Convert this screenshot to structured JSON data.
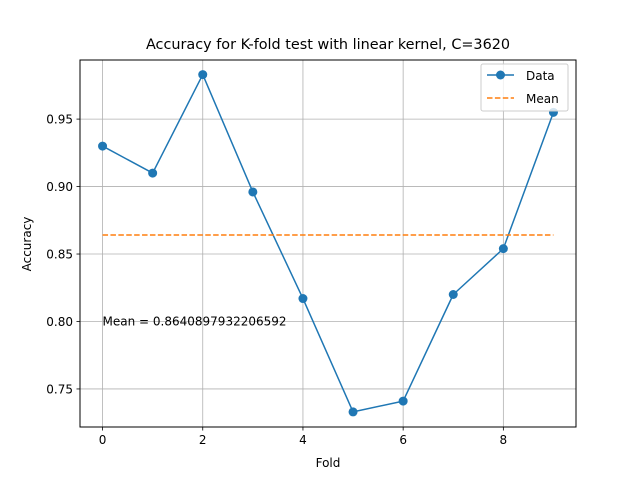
{
  "chart_data": {
    "type": "line",
    "title": "Accuracy for K-fold test with linear kernel, C=3620",
    "xlabel": "Fold",
    "ylabel": "Accuracy",
    "xlim": [
      -0.45,
      9.45
    ],
    "ylim": [
      0.7218,
      0.9938
    ],
    "xticks": [
      0,
      2,
      4,
      6,
      8
    ],
    "yticks": [
      0.75,
      0.8,
      0.85,
      0.9,
      0.95
    ],
    "ytick_labels": [
      "0.75",
      "0.80",
      "0.85",
      "0.90",
      "0.95"
    ],
    "grid": true,
    "legend": {
      "placement": "top-right",
      "entries": [
        "Data",
        "Mean"
      ]
    },
    "series": [
      {
        "name": "Data",
        "style": "line-marker",
        "color": "#1f77b4",
        "x": [
          0,
          1,
          2,
          3,
          4,
          5,
          6,
          7,
          8,
          9
        ],
        "values": [
          0.93,
          0.91,
          0.983,
          0.896,
          0.817,
          0.733,
          0.741,
          0.82,
          0.854,
          0.955
        ]
      },
      {
        "name": "Mean",
        "style": "dashed",
        "color": "#ff7f0e",
        "x": [
          0,
          9
        ],
        "values": [
          0.8640897932206592,
          0.8640897932206592
        ]
      }
    ],
    "annotations": [
      {
        "text": "Mean = 0.8640897932206592",
        "x": 0,
        "y": 0.8
      }
    ]
  }
}
